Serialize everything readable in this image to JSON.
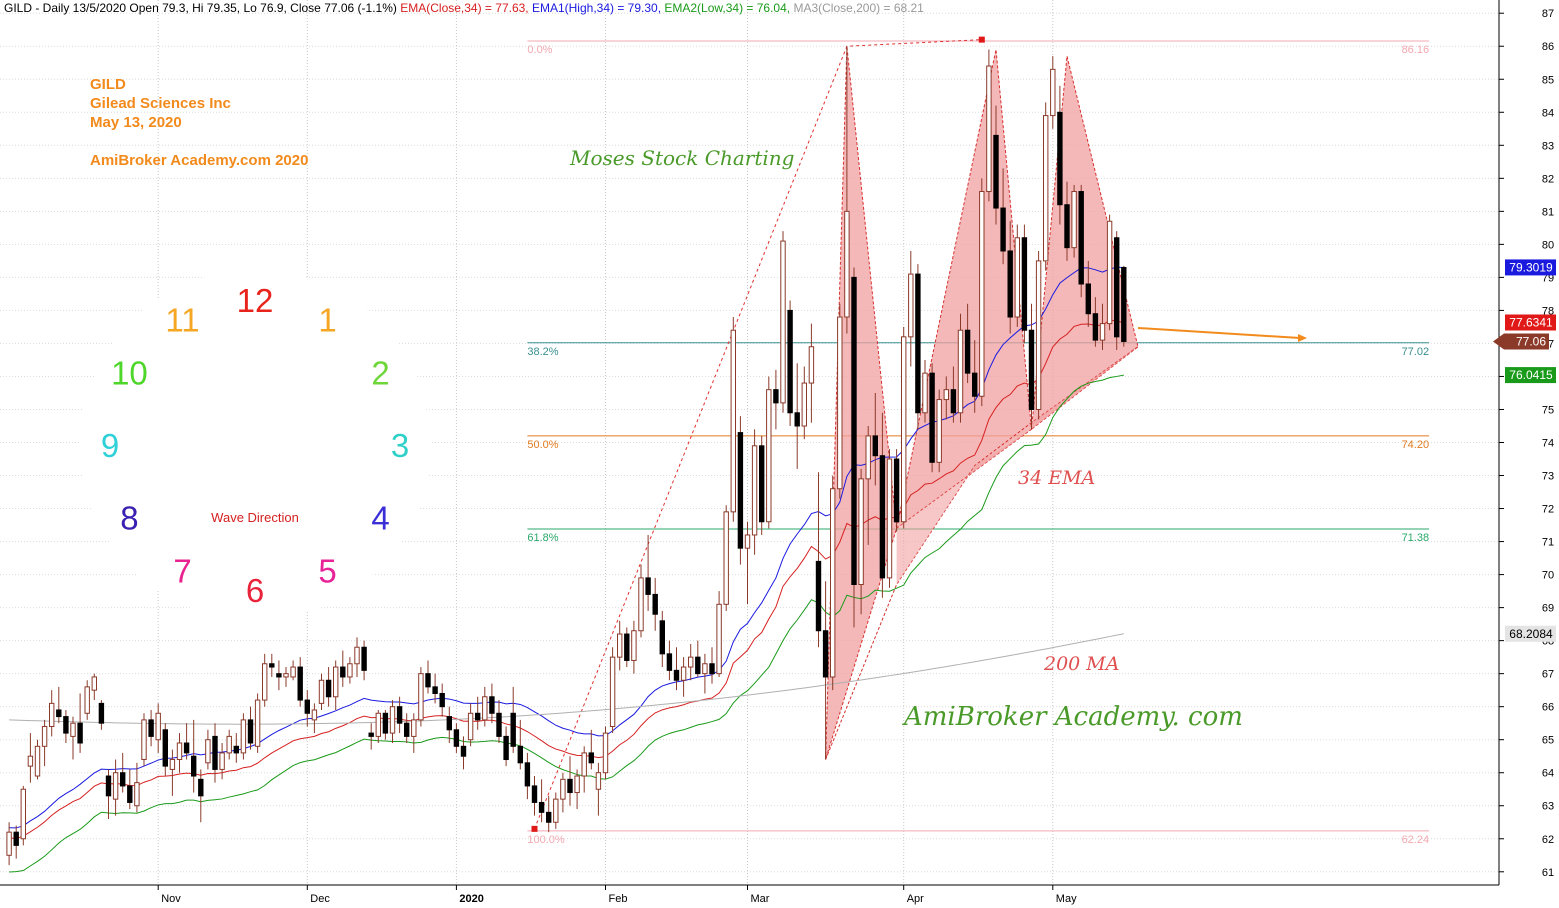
{
  "header": {
    "line1": "GILD - Daily 13/5/2020 Open 79.3, Hi 79.35, Lo 76.9, Close 77.06 (-1.1%) ",
    "ema": "EMA(Close,34) = 77.63, ",
    "ema1": "EMA1(High,34) = 79.30, ",
    "ema2": "EMA2(Low,34) = 76.04, ",
    "ma3": "MA3(Close,200) = 68.21"
  },
  "info": {
    "ticker": "GILD",
    "company": "Gilead Sciences Inc",
    "date": "May 13, 2020",
    "site": "AmiBroker Academy.com  2020"
  },
  "annotations": {
    "moses": "Moses Stock Charting",
    "ema34": "34 EMA",
    "ma200": "200 MA",
    "academy": "AmiBroker Academy. com",
    "wave": "Wave Direction"
  },
  "clock": {
    "numbers": [
      {
        "label": "12",
        "color": "#e8231c"
      },
      {
        "label": "1",
        "color": "#f5a623"
      },
      {
        "label": "2",
        "color": "#6fd63a"
      },
      {
        "label": "3",
        "color": "#2fd0c8"
      },
      {
        "label": "4",
        "color": "#3b2fd6"
      },
      {
        "label": "5",
        "color": "#e8239a"
      },
      {
        "label": "6",
        "color": "#e8233a"
      },
      {
        "label": "7",
        "color": "#e8238f"
      },
      {
        "label": "8",
        "color": "#3b1fb0"
      },
      {
        "label": "9",
        "color": "#2fd0d8"
      },
      {
        "label": "10",
        "color": "#4fd62a"
      },
      {
        "label": "11",
        "color": "#f5a623"
      }
    ]
  },
  "colors": {
    "ema_close": "#d62020",
    "ema_high": "#1a1adf",
    "ema_low": "#1a9a1a",
    "ma200": "#b0b0b0",
    "candle": "#8b3a2a",
    "pattern_fill": "#f2a0a0",
    "accent": "#f28a1c"
  },
  "chart_data": {
    "type": "candlestick",
    "ylim": [
      60.6,
      87.4
    ],
    "yticks": [
      "61",
      "62",
      "63",
      "64",
      "65",
      "66",
      "67",
      "68",
      "69",
      "70",
      "71",
      "72",
      "73",
      "74",
      "75",
      "76",
      "77",
      "78",
      "79",
      "80",
      "81",
      "82",
      "83",
      "84",
      "85",
      "86",
      "87"
    ],
    "months": [
      {
        "label": "Nov",
        "day": 22
      },
      {
        "label": "Dec",
        "day": 43
      },
      {
        "label": "2020",
        "day": 64,
        "bold": true
      },
      {
        "label": "Feb",
        "day": 85
      },
      {
        "label": "Mar",
        "day": 105
      },
      {
        "label": "Apr",
        "day": 127
      },
      {
        "label": "May",
        "day": 148
      }
    ],
    "n_days": 160,
    "price_labels": [
      {
        "text": "79.3019",
        "value": 79.3019,
        "bg": "#1a1adf",
        "fg": "#ffffff"
      },
      {
        "text": "77.6341",
        "value": 77.6341,
        "bg": "#e01818",
        "fg": "#ffffff"
      },
      {
        "text": "77.06",
        "value": 77.06,
        "bg": "#8b3a2a",
        "fg": "#ffffff",
        "pointer": true
      },
      {
        "text": "76.0415",
        "value": 76.0415,
        "bg": "#1a9a1a",
        "fg": "#ffffff"
      },
      {
        "text": "68.2084",
        "value": 68.2084,
        "bg": "#e4e4e4",
        "fg": "#000000"
      }
    ],
    "fibonacci": [
      {
        "pct": "0.0%",
        "value": 86.16,
        "label": "86.16",
        "color": "#f2a8b0"
      },
      {
        "pct": "38.2%",
        "value": 77.02,
        "label": "77.02",
        "color": "#3a8f8f"
      },
      {
        "pct": "50.0%",
        "value": 74.2,
        "label": "74.20",
        "color": "#e07a20"
      },
      {
        "pct": "61.8%",
        "value": 71.38,
        "label": "71.38",
        "color": "#2aa86a"
      },
      {
        "pct": "100.0%",
        "value": 62.24,
        "label": "62.24",
        "color": "#f2a8b0"
      }
    ],
    "fib_x_range": [
      74,
      201
    ],
    "pattern": {
      "fill": [
        [
          [
            116,
            64.4
          ],
          [
            119,
            86.0
          ],
          [
            126,
            71.4
          ]
        ],
        [
          [
            126,
            71.4
          ],
          [
            140,
            85.9
          ],
          [
            145,
            74.4
          ]
        ],
        [
          [
            145,
            74.4
          ],
          [
            150,
            85.7
          ],
          [
            160,
            76.9
          ]
        ],
        [
          [
            116,
            64.4
          ],
          [
            126,
            69.7
          ],
          [
            137,
            73.3
          ],
          [
            145,
            74.6
          ],
          [
            160,
            76.9
          ]
        ]
      ],
      "zigzag": [
        [
          75,
          62.3
        ],
        [
          119,
          86.0
        ],
        [
          138,
          86.2
        ]
      ]
    },
    "candles": [
      [
        1,
        61.5,
        62.5,
        61.2,
        62.2
      ],
      [
        2,
        62.2,
        62.4,
        61.4,
        61.8
      ],
      [
        3,
        62.0,
        63.6,
        61.8,
        63.5
      ],
      [
        4,
        64.2,
        65.2,
        63.7,
        64.5
      ],
      [
        5,
        63.9,
        65.0,
        63.8,
        64.8
      ],
      [
        6,
        64.8,
        65.6,
        64.2,
        65.4
      ],
      [
        7,
        65.4,
        66.5,
        65.1,
        66.1
      ],
      [
        8,
        65.9,
        66.6,
        65.5,
        65.7
      ],
      [
        9,
        65.7,
        65.9,
        64.9,
        65.2
      ],
      [
        10,
        65.1,
        65.7,
        64.4,
        65.5
      ],
      [
        11,
        65.5,
        66.4,
        64.6,
        64.9
      ],
      [
        12,
        65.8,
        66.8,
        65.6,
        66.6
      ],
      [
        13,
        66.5,
        67.0,
        66.2,
        66.9
      ],
      [
        14,
        66.1,
        66.2,
        65.3,
        65.5
      ],
      [
        15,
        63.9,
        64.1,
        62.6,
        63.3
      ],
      [
        16,
        63.2,
        64.4,
        62.7,
        64.0
      ],
      [
        17,
        64.0,
        64.6,
        63.4,
        63.6
      ],
      [
        18,
        63.6,
        64.1,
        62.9,
        63.1
      ],
      [
        19,
        63.0,
        64.3,
        62.8,
        63.7
      ],
      [
        20,
        64.4,
        65.8,
        64.2,
        65.6
      ],
      [
        21,
        65.6,
        65.9,
        64.8,
        65.1
      ],
      [
        22,
        65.0,
        66.1,
        64.6,
        65.8
      ],
      [
        23,
        65.3,
        65.5,
        63.9,
        64.2
      ],
      [
        24,
        64.1,
        64.7,
        63.3,
        64.4
      ],
      [
        25,
        64.4,
        65.2,
        64.0,
        64.9
      ],
      [
        26,
        64.9,
        65.5,
        64.4,
        64.6
      ],
      [
        27,
        64.5,
        65.6,
        63.4,
        63.9
      ],
      [
        28,
        63.8,
        64.1,
        62.5,
        63.3
      ],
      [
        29,
        64.3,
        65.3,
        64.1,
        65.0
      ],
      [
        30,
        65.1,
        65.5,
        63.7,
        64.1
      ],
      [
        31,
        64.1,
        64.9,
        63.8,
        64.6
      ],
      [
        32,
        64.6,
        65.3,
        64.4,
        65.1
      ],
      [
        33,
        64.8,
        65.2,
        64.3,
        64.6
      ],
      [
        34,
        64.6,
        65.8,
        64.4,
        65.6
      ],
      [
        35,
        65.6,
        66.0,
        64.7,
        64.9
      ],
      [
        36,
        64.8,
        66.4,
        64.6,
        66.2
      ],
      [
        37,
        66.2,
        67.6,
        66.0,
        67.3
      ],
      [
        38,
        67.3,
        67.6,
        66.9,
        67.2
      ],
      [
        39,
        67.0,
        67.4,
        66.5,
        66.9
      ],
      [
        40,
        66.9,
        67.2,
        66.6,
        67.0
      ],
      [
        41,
        66.9,
        67.4,
        66.8,
        67.2
      ],
      [
        42,
        67.2,
        67.5,
        66.0,
        66.2
      ],
      [
        43,
        66.2,
        66.5,
        65.4,
        65.8
      ],
      [
        44,
        65.6,
        66.1,
        65.2,
        65.9
      ],
      [
        45,
        66.1,
        67.0,
        65.9,
        66.8
      ],
      [
        46,
        66.8,
        67.2,
        66.0,
        66.3
      ],
      [
        47,
        66.3,
        67.4,
        65.9,
        67.2
      ],
      [
        48,
        67.2,
        67.7,
        66.6,
        66.9
      ],
      [
        49,
        66.9,
        67.5,
        66.7,
        67.3
      ],
      [
        50,
        67.3,
        68.1,
        66.9,
        67.8
      ],
      [
        51,
        67.8,
        68.0,
        66.8,
        67.1
      ],
      [
        52,
        65.2,
        65.5,
        64.7,
        65.1
      ],
      [
        53,
        65.1,
        65.9,
        64.9,
        65.8
      ],
      [
        54,
        65.8,
        65.9,
        65.0,
        65.2
      ],
      [
        55,
        65.2,
        66.2,
        64.9,
        66.0
      ],
      [
        56,
        66.0,
        66.3,
        65.2,
        65.5
      ],
      [
        57,
        65.5,
        65.8,
        64.9,
        65.1
      ],
      [
        58,
        65.1,
        65.8,
        64.6,
        65.6
      ],
      [
        59,
        65.6,
        67.2,
        65.4,
        67.0
      ],
      [
        60,
        67.0,
        67.4,
        66.4,
        66.6
      ],
      [
        61,
        66.6,
        67.0,
        66.1,
        66.4
      ],
      [
        62,
        66.4,
        66.7,
        65.7,
        66.0
      ],
      [
        63,
        65.7,
        66.0,
        64.9,
        65.3
      ],
      [
        64,
        65.3,
        65.5,
        64.6,
        64.8
      ],
      [
        65,
        64.8,
        65.1,
        64.1,
        64.5
      ],
      [
        66,
        65.0,
        66.1,
        64.8,
        65.8
      ],
      [
        67,
        65.8,
        66.3,
        65.3,
        65.6
      ],
      [
        68,
        65.6,
        66.6,
        65.4,
        66.3
      ],
      [
        69,
        66.3,
        66.7,
        65.5,
        65.8
      ],
      [
        70,
        65.8,
        66.2,
        64.9,
        65.1
      ],
      [
        71,
        65.1,
        65.4,
        64.2,
        64.4
      ],
      [
        72,
        65.8,
        66.6,
        64.6,
        64.8
      ],
      [
        73,
        64.8,
        65.6,
        64.1,
        64.3
      ],
      [
        74,
        64.3,
        64.6,
        63.2,
        63.6
      ],
      [
        75,
        63.6,
        63.9,
        62.7,
        63.1
      ],
      [
        76,
        63.1,
        63.8,
        62.5,
        62.8
      ],
      [
        77,
        62.8,
        63.3,
        62.2,
        62.5
      ],
      [
        78,
        62.5,
        63.4,
        62.3,
        63.2
      ],
      [
        79,
        63.2,
        64.0,
        62.8,
        63.8
      ],
      [
        80,
        63.8,
        64.5,
        63.0,
        63.4
      ],
      [
        81,
        63.4,
        64.1,
        62.9,
        63.9
      ],
      [
        82,
        63.9,
        64.8,
        63.4,
        64.6
      ],
      [
        83,
        64.6,
        65.3,
        64.1,
        64.3
      ],
      [
        84,
        63.5,
        64.3,
        62.7,
        64.0
      ],
      [
        85,
        64.0,
        65.4,
        63.8,
        65.2
      ],
      [
        86,
        65.4,
        67.8,
        65.2,
        67.5
      ],
      [
        87,
        67.5,
        68.6,
        67.1,
        68.2
      ],
      [
        88,
        68.2,
        68.4,
        67.2,
        67.4
      ],
      [
        89,
        67.4,
        68.6,
        67.0,
        68.3
      ],
      [
        90,
        68.3,
        70.3,
        68.1,
        69.9
      ],
      [
        91,
        69.9,
        71.2,
        68.9,
        69.4
      ],
      [
        92,
        69.4,
        69.9,
        68.3,
        68.8
      ],
      [
        93,
        68.6,
        68.9,
        67.2,
        67.6
      ],
      [
        94,
        67.6,
        68.0,
        66.8,
        67.1
      ],
      [
        95,
        67.1,
        67.8,
        66.5,
        66.8
      ],
      [
        96,
        66.8,
        67.5,
        66.3,
        67.2
      ],
      [
        97,
        67.2,
        67.9,
        66.8,
        67.5
      ],
      [
        98,
        67.5,
        68.0,
        66.9,
        67.0
      ],
      [
        99,
        67.0,
        67.6,
        66.4,
        67.3
      ],
      [
        100,
        67.3,
        67.8,
        66.7,
        67.0
      ],
      [
        101,
        67.0,
        69.5,
        66.9,
        69.1
      ],
      [
        102,
        69.1,
        72.1,
        68.9,
        71.9
      ],
      [
        103,
        71.9,
        77.8,
        71.6,
        77.4
      ],
      [
        104,
        74.3,
        74.8,
        70.3,
        70.8
      ],
      [
        105,
        70.8,
        71.6,
        69.1,
        71.2
      ],
      [
        106,
        71.2,
        74.4,
        70.6,
        73.9
      ],
      [
        107,
        73.9,
        74.2,
        71.2,
        71.6
      ],
      [
        108,
        71.6,
        76.0,
        71.4,
        75.6
      ],
      [
        109,
        75.6,
        76.2,
        74.4,
        75.2
      ],
      [
        110,
        75.2,
        80.4,
        74.9,
        80.1
      ],
      [
        111,
        78.0,
        78.3,
        74.5,
        74.9
      ],
      [
        112,
        74.9,
        76.4,
        73.2,
        74.5
      ],
      [
        113,
        74.5,
        76.3,
        74.1,
        75.8
      ],
      [
        114,
        75.8,
        77.6,
        74.6,
        76.9
      ],
      [
        115,
        70.4,
        73.1,
        67.8,
        68.3
      ],
      [
        116,
        68.3,
        69.8,
        64.4,
        66.9
      ],
      [
        117,
        66.9,
        73.0,
        66.5,
        72.6
      ],
      [
        118,
        72.6,
        78.2,
        72.3,
        77.8
      ],
      [
        119,
        77.8,
        86.0,
        77.3,
        81.0
      ],
      [
        120,
        79.0,
        79.3,
        68.4,
        69.7
      ],
      [
        121,
        69.7,
        73.2,
        68.8,
        72.9
      ],
      [
        122,
        72.9,
        74.5,
        70.9,
        74.2
      ],
      [
        123,
        74.2,
        75.5,
        72.7,
        73.6
      ],
      [
        124,
        73.6,
        74.9,
        69.3,
        69.9
      ],
      [
        125,
        69.9,
        73.8,
        69.6,
        73.5
      ],
      [
        126,
        73.5,
        73.8,
        71.3,
        71.6
      ],
      [
        127,
        71.6,
        77.5,
        71.4,
        77.2
      ],
      [
        128,
        77.2,
        79.8,
        76.3,
        79.1
      ],
      [
        129,
        79.1,
        79.4,
        74.4,
        74.9
      ],
      [
        130,
        74.9,
        76.5,
        74.6,
        76.1
      ],
      [
        131,
        76.1,
        76.4,
        73.1,
        73.4
      ],
      [
        132,
        73.4,
        75.6,
        73.1,
        75.3
      ],
      [
        133,
        75.3,
        76.0,
        74.7,
        75.6
      ],
      [
        134,
        75.6,
        76.3,
        74.6,
        74.9
      ],
      [
        135,
        74.9,
        77.9,
        74.6,
        77.4
      ],
      [
        136,
        77.4,
        78.2,
        75.8,
        76.1
      ],
      [
        137,
        76.1,
        77.1,
        74.9,
        75.4
      ],
      [
        138,
        75.4,
        82.0,
        75.1,
        81.6
      ],
      [
        139,
        81.6,
        85.9,
        81.3,
        85.4
      ],
      [
        140,
        83.3,
        84.2,
        80.6,
        81.1
      ],
      [
        141,
        81.1,
        82.3,
        79.4,
        79.8
      ],
      [
        142,
        79.8,
        80.7,
        77.3,
        77.8
      ],
      [
        143,
        77.8,
        80.6,
        77.5,
        80.2
      ],
      [
        144,
        80.2,
        80.6,
        77.0,
        77.4
      ],
      [
        145,
        77.4,
        78.2,
        74.4,
        75.0
      ],
      [
        146,
        75.0,
        79.8,
        74.7,
        79.5
      ],
      [
        147,
        79.5,
        84.3,
        79.2,
        83.9
      ],
      [
        148,
        83.9,
        85.7,
        83.5,
        85.3
      ],
      [
        149,
        84.0,
        84.8,
        80.6,
        81.2
      ],
      [
        150,
        81.2,
        81.9,
        79.5,
        79.9
      ],
      [
        151,
        79.9,
        81.8,
        79.6,
        81.6
      ],
      [
        152,
        81.6,
        81.8,
        78.4,
        78.8
      ],
      [
        153,
        78.8,
        79.5,
        77.5,
        77.9
      ],
      [
        154,
        77.9,
        78.4,
        76.9,
        77.1
      ],
      [
        155,
        77.1,
        78.2,
        76.8,
        77.6
      ],
      [
        156,
        77.6,
        80.9,
        77.4,
        80.7
      ],
      [
        157,
        80.2,
        80.4,
        76.8,
        77.2
      ],
      [
        158,
        79.3,
        79.35,
        76.9,
        77.06
      ]
    ]
  }
}
